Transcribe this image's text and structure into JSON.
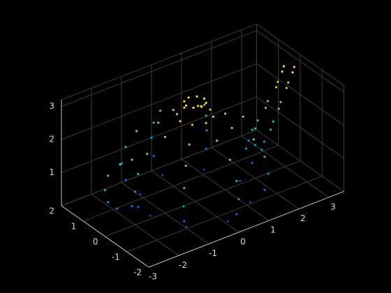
{
  "chart_data": {
    "type": "scatter3d",
    "colormap": "parula",
    "grid": true,
    "xlim": [
      -3,
      3.5
    ],
    "ylim": [
      -2,
      2
    ],
    "zlim": [
      0,
      3.2
    ],
    "xticks": [
      -3,
      -2,
      -1,
      0,
      1,
      2,
      3
    ],
    "yticks": [
      -2,
      -1,
      0,
      1,
      2
    ],
    "zticks": [
      1,
      2,
      3
    ],
    "x": [
      1.5,
      1.06,
      0,
      -1.06,
      -1.5,
      -1.06,
      0,
      1.06,
      1.9,
      1.34,
      0,
      -1.34,
      -1.9,
      -1.34,
      0,
      1.34,
      2,
      1.41,
      0,
      -1.41,
      -2,
      -1.41,
      0,
      1.41,
      1.9,
      1.34,
      0,
      -1.34,
      -1.9,
      -1.34,
      0,
      1.34,
      1.6,
      1.13,
      0,
      -1.13,
      -1.6,
      -1.13,
      0,
      1.13,
      1,
      0.71,
      0,
      -0.71,
      -1,
      -0.71,
      0,
      0.71,
      0.5,
      0.35,
      0,
      -0.35,
      -0.5,
      -0.35,
      0,
      0.35,
      0.3,
      0.21,
      0,
      -0.21,
      -0.3,
      -0.21,
      0,
      0.21,
      1.7,
      2.3,
      2,
      2,
      2,
      2.6,
      2.3,
      2.3,
      2.35,
      2.85,
      2.6,
      2.6,
      2.7,
      3.1,
      2.9,
      2.9,
      2.9,
      3.3,
      3.1,
      3.1,
      -2.1,
      -2.6,
      -2.9,
      -3,
      -2.9,
      -2.5,
      -2.1
    ],
    "y": [
      0,
      1.06,
      1.5,
      1.06,
      0,
      -1.06,
      -1.5,
      -1.06,
      0,
      1.34,
      1.9,
      1.34,
      0,
      -1.34,
      -1.9,
      -1.34,
      0,
      1.41,
      2,
      1.41,
      0,
      -1.41,
      -2,
      -1.41,
      0,
      1.34,
      1.9,
      1.34,
      0,
      -1.34,
      -1.9,
      -1.34,
      0,
      1.13,
      1.6,
      1.13,
      0,
      -1.13,
      -1.6,
      -1.13,
      0,
      0.71,
      1,
      0.71,
      0,
      -0.71,
      -1,
      -0.71,
      0,
      0.35,
      0.5,
      0.35,
      0,
      -0.35,
      -0.5,
      -0.35,
      0,
      0.21,
      0.3,
      0.21,
      0,
      -0.21,
      -0.3,
      -0.21,
      0,
      0,
      0.3,
      -0.3,
      0,
      0,
      0.3,
      -0.3,
      0,
      0,
      0.25,
      -0.25,
      0,
      0,
      0.2,
      -0.2,
      0,
      0,
      0.2,
      -0.2,
      0,
      0,
      0,
      0,
      0,
      0,
      0
    ],
    "z": [
      0.1,
      0.1,
      0.1,
      0.1,
      0.1,
      0.1,
      0.1,
      0.1,
      0.5,
      0.5,
      0.5,
      0.5,
      0.5,
      0.5,
      0.5,
      0.5,
      1,
      1,
      1,
      1,
      1,
      1,
      1,
      1,
      1.5,
      1.5,
      1.5,
      1.5,
      1.5,
      1.5,
      1.5,
      1.5,
      2,
      2,
      2,
      2,
      2,
      2,
      2,
      2,
      2.3,
      2.3,
      2.3,
      2.3,
      2.3,
      2.3,
      2.3,
      2.3,
      2.6,
      2.6,
      2.6,
      2.6,
      2.6,
      2.6,
      2.6,
      2.6,
      3,
      3,
      3,
      3,
      3,
      3,
      3,
      3,
      1,
      1,
      1,
      1,
      1.5,
      1.5,
      1.5,
      1.5,
      2,
      2,
      2,
      2,
      2.5,
      2.5,
      2.5,
      2.5,
      2.9,
      2.9,
      2.9,
      2.9,
      0.6,
      0.7,
      1,
      1.4,
      1.8,
      2,
      2
    ]
  }
}
